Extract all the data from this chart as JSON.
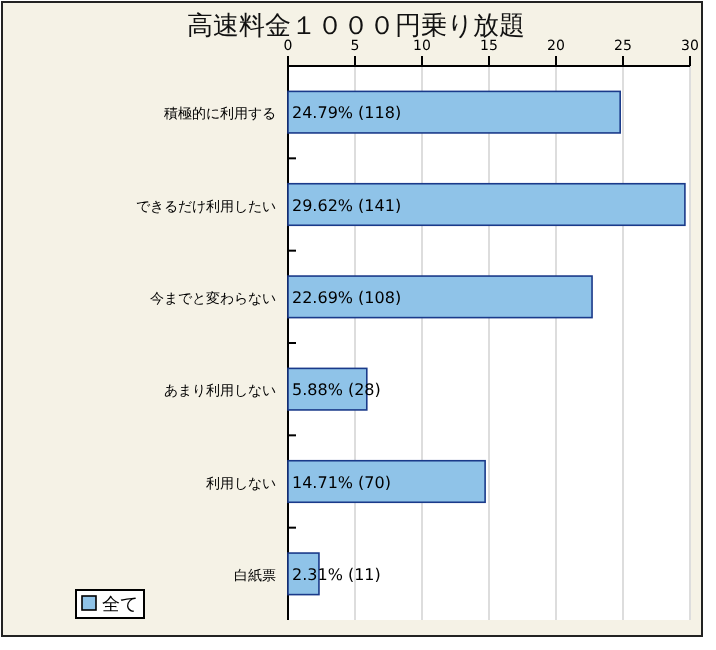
{
  "chart_data": {
    "type": "bar",
    "orientation": "horizontal",
    "title": "高速料金１０００円乗り放題",
    "categories": [
      "積極的に利用する",
      "できるだけ利用したい",
      "今までと変わらない",
      "あまり利用しない",
      "利用しない",
      "白紙票"
    ],
    "series": [
      {
        "name": "全て",
        "color": "#8fc3e8",
        "values": [
          24.79,
          29.62,
          22.69,
          5.88,
          14.71,
          2.31
        ],
        "value_labels": [
          "24.79% (118)",
          "29.62% (141)",
          "22.69% (108)",
          "5.88% (28)",
          "14.71% (70)",
          "2.31% (11)"
        ]
      }
    ],
    "xlim": [
      0,
      30
    ],
    "xticks": [
      0,
      5,
      10,
      15,
      20,
      25,
      30
    ],
    "grid": "x",
    "legend": "bottom left"
  }
}
